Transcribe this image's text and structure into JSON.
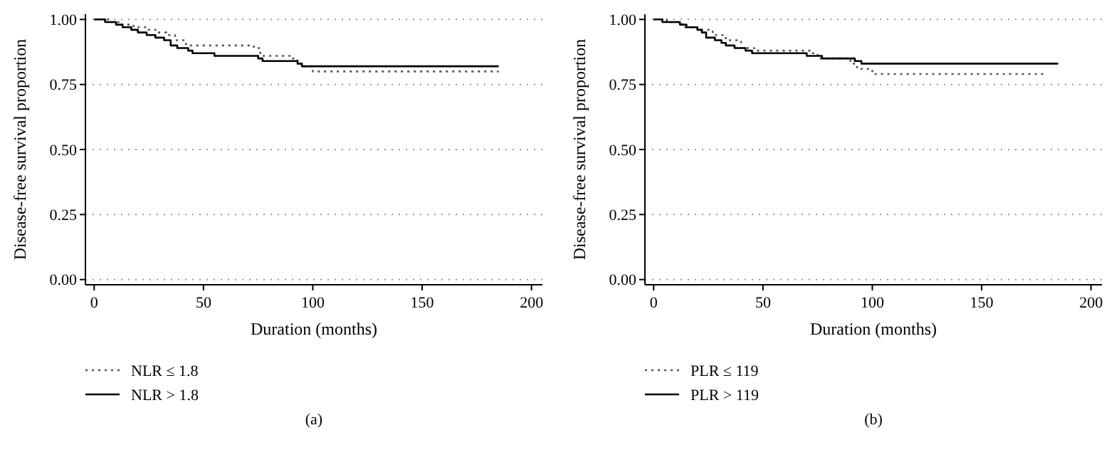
{
  "chart_data": [
    {
      "type": "step",
      "xlabel": "Duration (months)",
      "ylabel": "Disease-free survival proportion",
      "xlim": [
        -4,
        205
      ],
      "ylim": [
        -0.02,
        1.02
      ],
      "xticks": [
        0,
        50,
        100,
        150,
        200
      ],
      "yticks": [
        {
          "value": 0,
          "label": "0.00"
        },
        {
          "value": 0.25,
          "label": "0.25"
        },
        {
          "value": 0.5,
          "label": "0.50"
        },
        {
          "value": 0.75,
          "label": "0.75"
        },
        {
          "value": 1,
          "label": "1.00"
        }
      ],
      "grid": "y",
      "legend": "bottom",
      "annotations": [
        "(a)"
      ],
      "series": [
        {
          "name": "NLR ≤ 1.8",
          "color": "#555555",
          "line_style": "dotted",
          "x": [
            0,
            7,
            12,
            18,
            24,
            28,
            33,
            37,
            42,
            73,
            76,
            90,
            93,
            96,
            100,
            185
          ],
          "values": [
            1.0,
            0.99,
            0.98,
            0.97,
            0.96,
            0.95,
            0.94,
            0.92,
            0.9,
            0.89,
            0.86,
            0.85,
            0.83,
            0.82,
            0.8,
            0.8
          ]
        },
        {
          "name": "NLR > 1.8",
          "color": "#000000",
          "line_style": "solid",
          "x": [
            0,
            5,
            10,
            13,
            17,
            20,
            24,
            28,
            32,
            35,
            38,
            43,
            45,
            55,
            75,
            77,
            93,
            95,
            185
          ],
          "values": [
            1.0,
            0.99,
            0.98,
            0.97,
            0.96,
            0.95,
            0.94,
            0.93,
            0.92,
            0.9,
            0.89,
            0.88,
            0.87,
            0.86,
            0.85,
            0.84,
            0.83,
            0.82,
            0.82
          ]
        }
      ]
    },
    {
      "type": "step",
      "xlabel": "Duration (months)",
      "ylabel": "Disease-free survival proportion",
      "xlim": [
        -4,
        205
      ],
      "ylim": [
        -0.02,
        1.02
      ],
      "xticks": [
        0,
        50,
        100,
        150,
        200
      ],
      "yticks": [
        {
          "value": 0,
          "label": "0.00"
        },
        {
          "value": 0.25,
          "label": "0.25"
        },
        {
          "value": 0.5,
          "label": "0.50"
        },
        {
          "value": 0.75,
          "label": "0.75"
        },
        {
          "value": 1,
          "label": "1.00"
        }
      ],
      "grid": "y",
      "legend": "bottom",
      "annotations": [
        "(b)"
      ],
      "series": [
        {
          "name": "PLR ≤ 119",
          "color": "#555555",
          "line_style": "dotted",
          "x": [
            0,
            6,
            13,
            20,
            27,
            33,
            40,
            46,
            72,
            75,
            90,
            93,
            100,
            180
          ],
          "values": [
            1.0,
            0.99,
            0.97,
            0.96,
            0.94,
            0.92,
            0.89,
            0.88,
            0.87,
            0.85,
            0.83,
            0.81,
            0.79,
            0.79
          ]
        },
        {
          "name": "PLR > 119",
          "color": "#000000",
          "line_style": "solid",
          "x": [
            0,
            4,
            12,
            15,
            20,
            22,
            24,
            28,
            31,
            33,
            37,
            42,
            45,
            70,
            77,
            92,
            95,
            185
          ],
          "values": [
            1.0,
            0.99,
            0.98,
            0.97,
            0.96,
            0.95,
            0.93,
            0.92,
            0.91,
            0.9,
            0.89,
            0.88,
            0.87,
            0.86,
            0.85,
            0.84,
            0.83,
            0.83
          ]
        }
      ]
    }
  ]
}
